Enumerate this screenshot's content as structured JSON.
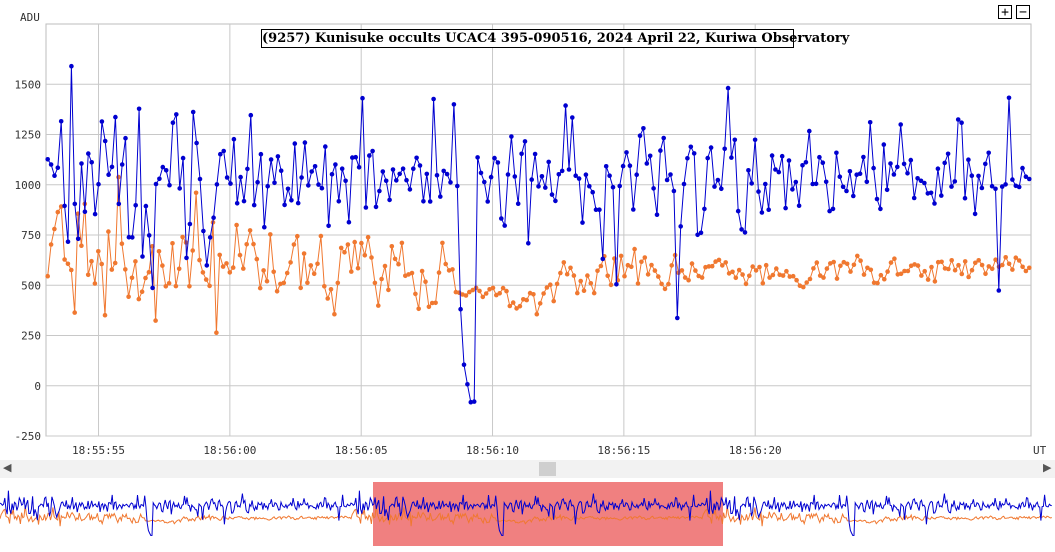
{
  "chart_data": {
    "type": "line",
    "title": "(9257) Kunisuke occults UCAC4 395-090516, 2024 April 22, Kuriwa Observatory",
    "ylabel": "ADU",
    "xlabel": "UT",
    "ylim": [
      -250,
      1800
    ],
    "xlim": [
      0,
      37.5
    ],
    "x_tick_labels": [
      "18:55:55",
      "18:56:00",
      "18:56:05",
      "18:56:10",
      "18:56:15",
      "18:56:20"
    ],
    "x_tick_values": [
      2.0,
      7.0,
      12.0,
      17.0,
      22.0,
      27.0
    ],
    "y_ticks": [
      -250,
      0,
      250,
      500,
      750,
      1000,
      1250,
      1500
    ],
    "grid": true,
    "series": [
      {
        "color": "#0000d0",
        "values": [
          1127,
          1101,
          1045,
          1085,
          1316,
          895,
          717,
          1590,
          905,
          731,
          1106,
          866,
          1155,
          1112,
          854,
          1003,
          1315,
          1218,
          1050,
          1089,
          1337,
          905,
          1101,
          1232,
          739,
          738,
          898,
          1378,
          643,
          894,
          748,
          487,
          1004,
          1030,
          1088,
          1072,
          998,
          1309,
          1350,
          982,
          1133,
          636,
          805,
          1362,
          1208,
          1029,
          770,
          599,
          738,
          836,
          1002,
          1152,
          1168,
          1036,
          1006,
          1227,
          908,
          1038,
          919,
          1079,
          1346,
          899,
          1013,
          1152,
          789,
          993,
          1126,
          1010,
          1141,
          1070,
          900,
          980,
          923,
          1205,
          909,
          1036,
          1210,
          997,
          1066,
          1092,
          1001,
          983,
          1190,
          796,
          1052,
          1101,
          918,
          1080,
          1020,
          814,
          1135,
          1137,
          1087,
          1431,
          887,
          1145,
          1168,
          890,
          969,
          1066,
          1020,
          925,
          1076,
          1022,
          1054,
          1080,
          1023,
          977,
          1080,
          1134,
          1096,
          918,
          1054,
          917,
          1427,
          1047,
          941,
          1069,
          1053,
          1012,
          1400,
          994,
          381,
          105,
          7,
          -82,
          -79,
          1136,
          1059,
          1014,
          917,
          1038,
          1133,
          1111,
          832,
          797,
          1051,
          1240,
          1041,
          906,
          1154,
          1216,
          709,
          1026,
          1153,
          992,
          1042,
          986,
          1114,
          951,
          920,
          1052,
          1069,
          1394,
          1076,
          1335,
          1045,
          1031,
          812,
          1050,
          993,
          963,
          876,
          876,
          631,
          1092,
          1045,
          988,
          505,
          994,
          1093,
          1161,
          1095,
          877,
          1050,
          1244,
          1281,
          1106,
          1144,
          982,
          851,
          1170,
          1233,
          1024,
          1051,
          969,
          337,
          793,
          1004,
          1132,
          1189,
          1156,
          751,
          761,
          880,
          1133,
          1185,
          991,
          1024,
          980,
          1179,
          1481,
          1135,
          1224,
          869,
          778,
          763,
          1072,
          1007,
          1224,
          966,
          862,
          1004,
          876,
          1145,
          1076,
          1063,
          1142,
          884,
          1121,
          977,
          1014,
          896,
          1097,
          1112,
          1267,
          1004,
          1005,
          1137,
          1110,
          1015,
          869,
          880,
          1159,
          1040,
          990,
          969,
          1067,
          944,
          1050,
          1055,
          1138,
          1015,
          1311,
          1083,
          929,
          880,
          1200,
          975,
          1106,
          1051,
          1089,
          1300,
          1104,
          1057,
          1123,
          934,
          1032,
          1020,
          1009,
          957,
          960,
          907,
          1080,
          946,
          1109,
          1154,
          991,
          1017,
          1325,
          1309,
          933,
          1125,
          1045,
          855,
          1044,
          984,
          1104,
          1159,
          993,
          980,
          474,
          991,
          1002,
          1433,
          1026,
          995,
          989,
          1083,
          1040,
          1029
        ]
      },
      {
        "color": "#f07830",
        "values": [
          545,
          703,
          780,
          864,
          892,
          628,
          607,
          576,
          364,
          856,
          697,
          905,
          552,
          620,
          509,
          669,
          606,
          351,
          767,
          578,
          611,
          1038,
          707,
          579,
          443,
          537,
          619,
          431,
          468,
          536,
          565,
          694,
          324,
          669,
          598,
          495,
          510,
          709,
          496,
          582,
          740,
          713,
          495,
          673,
          960,
          625,
          564,
          528,
          497,
          813,
          264,
          651,
          593,
          609,
          564,
          588,
          800,
          650,
          583,
          704,
          773,
          705,
          630,
          486,
          574,
          520,
          753,
          567,
          470,
          507,
          512,
          561,
          614,
          703,
          744,
          487,
          658,
          513,
          599,
          557,
          607,
          745,
          495,
          434,
          480,
          356,
          512,
          686,
          664,
          703,
          568,
          715,
          585,
          710,
          649,
          739,
          638,
          512,
          399,
          531,
          596,
          477,
          694,
          631,
          605,
          711,
          547,
          554,
          561,
          457,
          383,
          571,
          518,
          393,
          412,
          413,
          563,
          711,
          606,
          574,
          579,
          466,
          463,
          454,
          449,
          466,
          476,
          487,
          472,
          442,
          459,
          480,
          487,
          451,
          460,
          486,
          471,
          397,
          414,
          385,
          396,
          430,
          426,
          461,
          455,
          356,
          410,
          459,
          489,
          503,
          421,
          507,
          561,
          614,
          555,
          587,
          548,
          461,
          521,
          473,
          548,
          510,
          461,
          572,
          596,
          644,
          547,
          502,
          633,
          525,
          646,
          545,
          600,
          592,
          680,
          509,
          617,
          638,
          554,
          601,
          573,
          543,
          507,
          482,
          506,
          599,
          650,
          562,
          574,
          538,
          525,
          608,
          573,
          546,
          538,
          590,
          594,
          595,
          618,
          626,
          599,
          614,
          559,
          567,
          537,
          576,
          553,
          507,
          547,
          593,
          574,
          591,
          510,
          600,
          538,
          551,
          583,
          552,
          548,
          570,
          543,
          545,
          525,
          498,
          491,
          514,
          531,
          584,
          613,
          548,
          538,
          583,
          609,
          616,
          533,
          597,
          615,
          607,
          568,
          602,
          646,
          622,
          553,
          587,
          577,
          513,
          511,
          550,
          530,
          568,
          613,
          632,
          554,
          557,
          571,
          571,
          597,
          604,
          598,
          548,
          570,
          528,
          591,
          519,
          615,
          617,
          584,
          581,
          624,
          575,
          600,
          556,
          619,
          541,
          575,
          612,
          624,
          601,
          557,
          594,
          582,
          627,
          592,
          601,
          639,
          607,
          578,
          637,
          623,
          592,
          571,
          587
        ]
      }
    ]
  },
  "ui": {
    "zoom_in_label": "+",
    "zoom_out_label": "−",
    "scroll_left": "◀",
    "scroll_right": "▶"
  }
}
